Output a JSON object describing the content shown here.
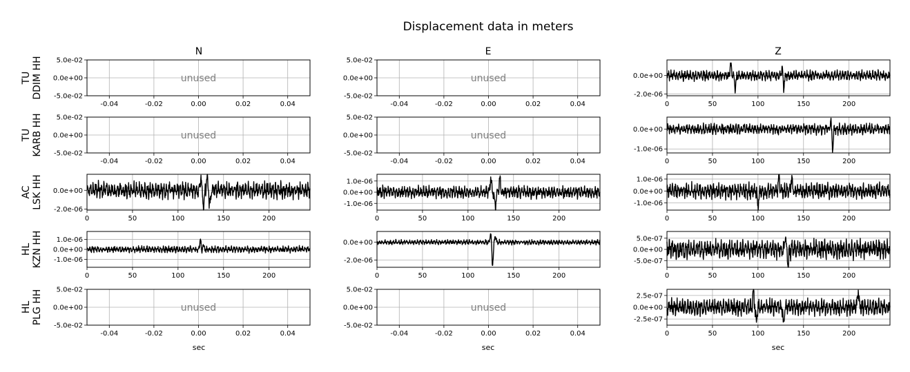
{
  "title": "Displacement data in meters",
  "columns": [
    "N",
    "E",
    "Z"
  ],
  "rows": [
    {
      "network": "TU",
      "station": "DDIM HH"
    },
    {
      "network": "TU",
      "station": "KARB HH"
    },
    {
      "network": "AC",
      "station": "LSK HH"
    },
    {
      "network": "HL",
      "station": "KZN HH"
    },
    {
      "network": "HL",
      "station": "PLG HH"
    }
  ],
  "unused_label": "unused",
  "xlabel": "sec",
  "chart_data": {
    "type": "line",
    "title": "Displacement data in meters",
    "xlabel": "sec",
    "line_color": "#000000",
    "grid": true,
    "panels": [
      {
        "row": 0,
        "col": 0,
        "component": "N",
        "unused": true,
        "xlim": [
          -0.05,
          0.05
        ],
        "ylim": [
          -0.05,
          0.05
        ],
        "xticks": [
          "-0.04",
          "-0.02",
          "0.00",
          "0.02",
          "0.04"
        ],
        "yticks": [
          "-5.0e-02",
          "0.0e+00",
          "5.0e-02"
        ]
      },
      {
        "row": 0,
        "col": 1,
        "component": "E",
        "unused": true,
        "xlim": [
          -0.05,
          0.05
        ],
        "ylim": [
          -0.05,
          0.05
        ],
        "xticks": [
          "-0.04",
          "-0.02",
          "0.00",
          "0.02",
          "0.04"
        ],
        "yticks": [
          "-5.0e-02",
          "0.0e+00",
          "5.0e-02"
        ]
      },
      {
        "row": 0,
        "col": 2,
        "component": "Z",
        "unused": false,
        "xlim": [
          0,
          245
        ],
        "ylim": [
          -2.2e-06,
          1.7e-06
        ],
        "xticks": [
          "0",
          "50",
          "100",
          "150",
          "200"
        ],
        "yticks": [
          "-2.0e-06",
          "0.0e+00"
        ],
        "amp": 5e-07,
        "spikes": [
          {
            "t": 70,
            "a": 1.3e-06
          },
          {
            "t": 75,
            "a": -1.4e-06
          },
          {
            "t": 127,
            "a": 1.6e-06
          },
          {
            "t": 128,
            "a": -2.1e-06
          }
        ]
      },
      {
        "row": 1,
        "col": 0,
        "component": "N",
        "unused": true,
        "xlim": [
          -0.05,
          0.05
        ],
        "ylim": [
          -0.05,
          0.05
        ],
        "xticks": [
          "-0.04",
          "-0.02",
          "0.00",
          "0.02",
          "0.04"
        ],
        "yticks": [
          "-5.0e-02",
          "0.0e+00",
          "5.0e-02"
        ]
      },
      {
        "row": 1,
        "col": 1,
        "component": "E",
        "unused": true,
        "xlim": [
          -0.05,
          0.05
        ],
        "ylim": [
          -0.05,
          0.05
        ],
        "xticks": [
          "-0.04",
          "-0.02",
          "0.00",
          "0.02",
          "0.04"
        ],
        "yticks": [
          "-5.0e-02",
          "0.0e+00",
          "5.0e-02"
        ]
      },
      {
        "row": 1,
        "col": 2,
        "component": "Z",
        "unused": false,
        "xlim": [
          0,
          245
        ],
        "ylim": [
          -1.2e-06,
          6e-07
        ],
        "xticks": [
          "0",
          "50",
          "100",
          "150",
          "200"
        ],
        "yticks": [
          "-1.0e-06",
          "0.0e+00"
        ],
        "amp": 2.5e-07,
        "spikes": [
          {
            "t": 180,
            "a": 5e-07
          },
          {
            "t": 182,
            "a": -1.1e-06
          }
        ]
      },
      {
        "row": 2,
        "col": 0,
        "component": "N",
        "unused": false,
        "xlim": [
          0,
          245
        ],
        "ylim": [
          -2.1e-06,
          1.7e-06
        ],
        "xticks": [
          "0",
          "50",
          "100",
          "150",
          "200"
        ],
        "yticks": [
          "-2.0e-06",
          "0.0e+00"
        ],
        "amp": 8e-07,
        "spikes": [
          {
            "t": 125,
            "a": 1.5e-06
          },
          {
            "t": 128,
            "a": -2e-06
          },
          {
            "t": 132,
            "a": 1.6e-06
          },
          {
            "t": 135,
            "a": -2e-06
          }
        ]
      },
      {
        "row": 2,
        "col": 1,
        "component": "E",
        "unused": false,
        "xlim": [
          0,
          245
        ],
        "ylim": [
          -1.6e-06,
          1.6e-06
        ],
        "xticks": [
          "0",
          "50",
          "100",
          "150",
          "200"
        ],
        "yticks": [
          "-1.0e-06",
          "0.0e+00",
          "1.0e-06"
        ],
        "amp": 5e-07,
        "spikes": [
          {
            "t": 125,
            "a": 1.4e-06
          },
          {
            "t": 130,
            "a": -1.5e-06
          },
          {
            "t": 135,
            "a": 1.3e-06
          }
        ]
      },
      {
        "row": 2,
        "col": 2,
        "component": "Z",
        "unused": false,
        "xlim": [
          0,
          245
        ],
        "ylim": [
          -1.6e-06,
          1.4e-06
        ],
        "xticks": [
          "0",
          "50",
          "100",
          "150",
          "200"
        ],
        "yticks": [
          "-1.0e-06",
          "0.0e+00",
          "1.0e-06"
        ],
        "amp": 6e-07,
        "spikes": [
          {
            "t": 100,
            "a": -1.5e-06
          },
          {
            "t": 123,
            "a": 1.3e-06
          },
          {
            "t": 137,
            "a": 1.2e-06
          }
        ]
      },
      {
        "row": 3,
        "col": 0,
        "component": "N",
        "unused": false,
        "xlim": [
          0,
          245
        ],
        "ylim": [
          -1.8e-06,
          1.8e-06
        ],
        "xticks": [
          "0",
          "50",
          "100",
          "150",
          "200"
        ],
        "yticks": [
          "-1.0e-06",
          "0.0e+00",
          "1.0e-06"
        ],
        "amp": 3e-07,
        "spikes": [
          {
            "t": 125,
            "a": 1.8e-06
          },
          {
            "t": 126,
            "a": -1.8e-06
          },
          {
            "t": 127,
            "a": 1.2e-06
          }
        ]
      },
      {
        "row": 3,
        "col": 1,
        "component": "E",
        "unused": false,
        "xlim": [
          0,
          245
        ],
        "ylim": [
          -2.8e-06,
          1.2e-06
        ],
        "xticks": [
          "0",
          "50",
          "100",
          "150",
          "200"
        ],
        "yticks": [
          "-2.0e-06",
          "0.0e+00"
        ],
        "amp": 2.5e-07,
        "spikes": [
          {
            "t": 125,
            "a": 1.1e-06
          },
          {
            "t": 127,
            "a": -2.8e-06
          },
          {
            "t": 130,
            "a": 8e-07
          }
        ]
      },
      {
        "row": 3,
        "col": 2,
        "component": "Z",
        "unused": false,
        "xlim": [
          0,
          245
        ],
        "ylim": [
          -8e-07,
          8e-07
        ],
        "xticks": [
          "0",
          "50",
          "100",
          "150",
          "200"
        ],
        "yticks": [
          "-5.0e-07",
          "0.0e+00",
          "5.0e-07"
        ],
        "amp": 4e-07,
        "spikes": [
          {
            "t": 130,
            "a": 7.5e-07
          },
          {
            "t": 133,
            "a": -7.5e-07
          }
        ]
      },
      {
        "row": 4,
        "col": 0,
        "component": "N",
        "unused": true,
        "xlim": [
          -0.05,
          0.05
        ],
        "ylim": [
          -0.05,
          0.05
        ],
        "xticks": [
          "-0.04",
          "-0.02",
          "0.00",
          "0.02",
          "0.04"
        ],
        "yticks": [
          "-5.0e-02",
          "0.0e+00",
          "5.0e-02"
        ]
      },
      {
        "row": 4,
        "col": 1,
        "component": "E",
        "unused": true,
        "xlim": [
          -0.05,
          0.05
        ],
        "ylim": [
          -0.05,
          0.05
        ],
        "xticks": [
          "-0.04",
          "-0.02",
          "0.00",
          "0.02",
          "0.04"
        ],
        "yticks": [
          "-5.0e-02",
          "0.0e+00",
          "5.0e-02"
        ]
      },
      {
        "row": 4,
        "col": 2,
        "component": "Z",
        "unused": false,
        "xlim": [
          0,
          245
        ],
        "ylim": [
          -3.8e-07,
          3.8e-07
        ],
        "xticks": [
          "0",
          "50",
          "100",
          "150",
          "200"
        ],
        "yticks": [
          "-2.5e-07",
          "0.0e+00",
          "2.5e-07"
        ],
        "amp": 1.6e-07,
        "spikes": [
          {
            "t": 95,
            "a": 3.6e-07
          },
          {
            "t": 98,
            "a": -3.5e-07
          },
          {
            "t": 128,
            "a": -3.6e-07
          },
          {
            "t": 210,
            "a": 3.5e-07
          }
        ]
      }
    ]
  }
}
